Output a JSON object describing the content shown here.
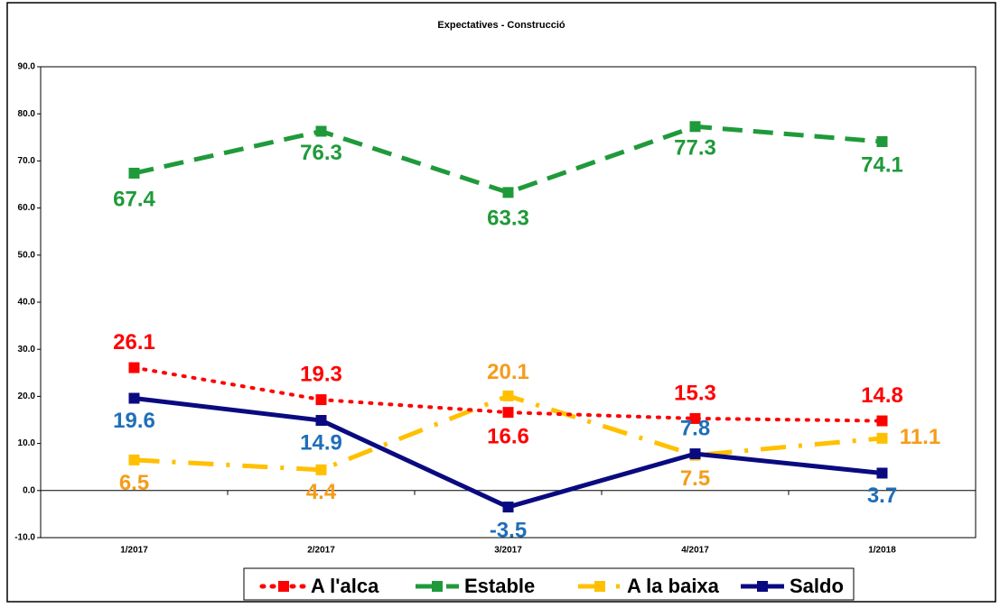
{
  "chart_data": {
    "type": "line",
    "title": "Expectatives - Construcció",
    "categories": [
      "1/2017",
      "2/2017",
      "3/2017",
      "4/2017",
      "1/2018"
    ],
    "ylim": [
      -10,
      90
    ],
    "yticks": [
      {
        "value": -10,
        "label": "-10.0"
      },
      {
        "value": 0,
        "label": "0.0"
      },
      {
        "value": 10,
        "label": "10.0"
      },
      {
        "value": 20,
        "label": "20.0"
      },
      {
        "value": 30,
        "label": "30.0"
      },
      {
        "value": 40,
        "label": "40.0"
      },
      {
        "value": 50,
        "label": "50.0"
      },
      {
        "value": 60,
        "label": "60.0"
      },
      {
        "value": 70,
        "label": "70.0"
      },
      {
        "value": 80,
        "label": "80.0"
      },
      {
        "value": 90,
        "label": "90.0"
      }
    ],
    "legend": "bottom",
    "series": [
      {
        "name": "A l'alca",
        "color": "#ff0000",
        "label_color": "#ff0000",
        "dash": "dotted",
        "values": [
          26.1,
          19.3,
          16.6,
          15.3,
          14.8
        ]
      },
      {
        "name": "Estable",
        "color": "#1f9a3a",
        "label_color": "#1f9a3a",
        "dash": "dashed",
        "values": [
          67.4,
          76.3,
          63.3,
          77.3,
          74.1
        ]
      },
      {
        "name": "A la baixa",
        "color": "#ffc000",
        "label_color": "#f59c1a",
        "dash": "dashdot",
        "values": [
          6.5,
          4.4,
          20.1,
          7.5,
          11.1
        ]
      },
      {
        "name": "Saldo",
        "color": "#0a0a80",
        "label_color": "#1f6fb8",
        "dash": "solid",
        "values": [
          19.6,
          14.9,
          -3.5,
          7.8,
          3.7
        ]
      }
    ]
  }
}
